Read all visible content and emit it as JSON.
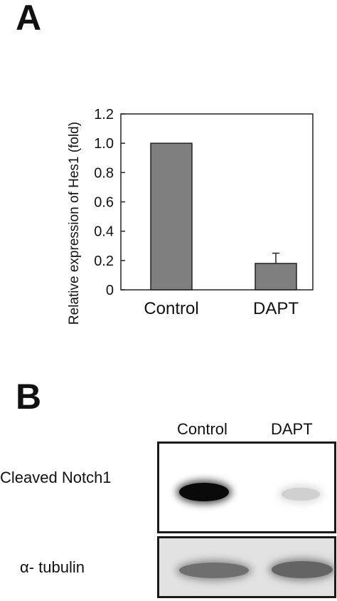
{
  "panel_a": {
    "letter": "A",
    "chart_data": {
      "type": "bar",
      "categories": [
        "Control",
        "DAPT"
      ],
      "values": [
        1.0,
        0.18
      ],
      "error_upper": [
        0,
        0.07
      ],
      "ylabel": "Relative expression of Hes1 (fold)",
      "xlabel": "",
      "title": "",
      "ylim": [
        0,
        1.2
      ],
      "yticks": [
        0,
        0.2,
        0.4,
        0.6,
        0.8,
        1.0,
        1.2
      ],
      "ytick_labels": [
        "0",
        "0.2",
        "0.4",
        "0.6",
        "0.8",
        "1.0",
        "1.2"
      ],
      "grid": false,
      "bar_color": "#7f7f7f"
    }
  },
  "panel_b": {
    "letter": "B",
    "lane_labels": [
      "Control",
      "DAPT"
    ],
    "rows": [
      {
        "label": "Cleaved Notch1",
        "band_intensity": [
          1.0,
          0.12
        ]
      },
      {
        "label": "α- tubulin",
        "band_intensity": [
          0.55,
          0.6
        ]
      }
    ]
  }
}
